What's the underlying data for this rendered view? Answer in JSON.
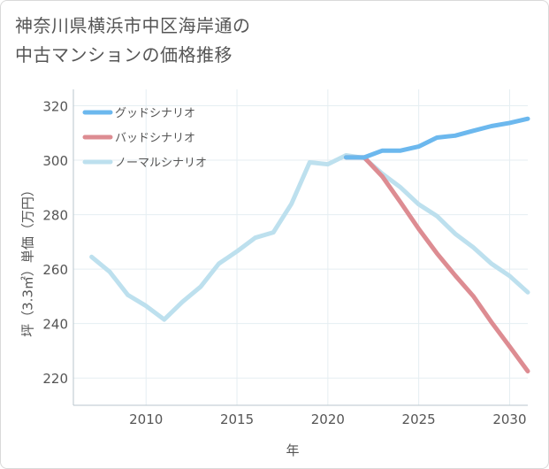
{
  "title_line1": "神奈川県横浜市中区海岸通の",
  "title_line2": "中古マンションの価格推移",
  "chart_data": {
    "type": "line",
    "title": "神奈川県横浜市中区海岸通の中古マンションの価格推移",
    "xlabel": "年",
    "ylabel": "坪（3.3㎡）単価（万円）",
    "xlim": [
      2006,
      2031
    ],
    "ylim": [
      210,
      326
    ],
    "xticks": [
      2010,
      2015,
      2020,
      2025,
      2030
    ],
    "yticks": [
      220,
      240,
      260,
      280,
      300,
      320
    ],
    "grid": true,
    "legend_position": "top-left",
    "series": [
      {
        "name": "グッドシナリオ",
        "color": "#6cb8ee",
        "x": [
          2021,
          2022,
          2023,
          2024,
          2025,
          2026,
          2027,
          2028,
          2029,
          2030,
          2031
        ],
        "values": [
          301,
          301,
          303.5,
          303.5,
          305,
          308.3,
          309,
          310.8,
          312.5,
          313.7,
          315.2
        ]
      },
      {
        "name": "バッドシナリオ",
        "color": "#dd8c92",
        "x": [
          2021,
          2022,
          2023,
          2024,
          2025,
          2026,
          2027,
          2028,
          2029,
          2030,
          2031
        ],
        "values": [
          301,
          301,
          294,
          284.5,
          274.8,
          265.8,
          257.7,
          250.1,
          240.5,
          231.6,
          222.5
        ]
      },
      {
        "name": "ノーマルシナリオ",
        "color": "#bde0ee",
        "x": [
          2007,
          2008,
          2009,
          2010,
          2011,
          2012,
          2013,
          2014,
          2015,
          2016,
          2017,
          2018,
          2019,
          2020,
          2021,
          2022,
          2023,
          2024,
          2025,
          2026,
          2027,
          2028,
          2029,
          2030,
          2031
        ],
        "values": [
          264.5,
          259,
          250.5,
          246.5,
          241.5,
          248,
          253.5,
          262,
          266.5,
          271.5,
          273.5,
          284,
          299.2,
          298.5,
          301.8,
          300.8,
          295,
          290,
          283.8,
          279.5,
          273,
          268,
          262,
          257.5,
          251.5
        ]
      }
    ]
  }
}
